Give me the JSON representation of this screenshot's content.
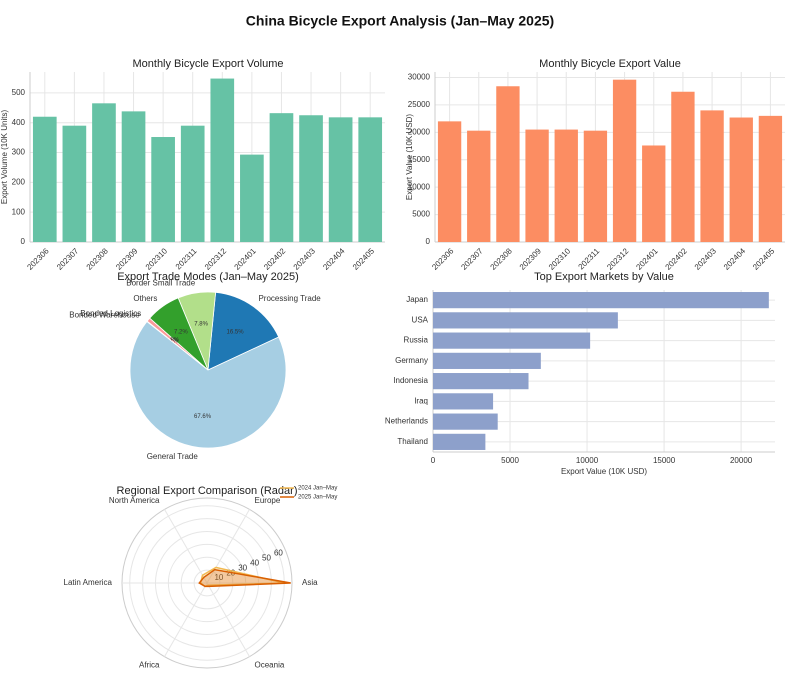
{
  "title": "China Bicycle Export Analysis (Jan–May 2025)",
  "chart_data": [
    {
      "type": "bar",
      "title": "Monthly Bicycle Export Volume",
      "ylabel": "Export Volume (10K Units)",
      "categories": [
        "202306",
        "202307",
        "202308",
        "202309",
        "202310",
        "202311",
        "202312",
        "202401",
        "202402",
        "202403",
        "202404",
        "202405"
      ],
      "values": [
        420,
        390,
        465,
        438,
        352,
        390,
        548,
        293,
        432,
        425,
        418,
        418
      ],
      "color": "#66c2a5",
      "ylim": [
        0,
        570
      ],
      "yticks": [
        0,
        100,
        200,
        300,
        400,
        500
      ],
      "grid": true
    },
    {
      "type": "bar",
      "title": "Monthly Bicycle Export Value",
      "ylabel": "Export Value (10K USD)",
      "categories": [
        "202306",
        "202307",
        "202308",
        "202309",
        "202310",
        "202311",
        "202312",
        "202401",
        "202402",
        "202403",
        "202404",
        "202405"
      ],
      "values": [
        22000,
        20300,
        28400,
        20500,
        20500,
        20300,
        29600,
        17600,
        27400,
        24000,
        22700,
        23000
      ],
      "color": "#fc8d62",
      "ylim": [
        0,
        31000
      ],
      "yticks": [
        0,
        5000,
        10000,
        15000,
        20000,
        25000,
        30000
      ],
      "grid": true
    },
    {
      "type": "pie",
      "title": "Export Trade Modes (Jan–May 2025)",
      "categories": [
        "Processing Trade",
        "Border Small Trade",
        "Others",
        "Bonded Logistics",
        "Bonded Warehouse",
        "General Trade"
      ],
      "values": [
        16.5,
        7.8,
        7.2,
        0.8,
        0.1,
        67.6
      ],
      "value_labels": [
        "16.5%",
        "7.8%",
        "7.2%",
        "0.8%",
        "0.1%",
        "67.6%"
      ],
      "colors": [
        "#1f78b4",
        "#b2df8a",
        "#33a02c",
        "#fb9a99",
        "#e31a1c",
        "#a6cee3"
      ]
    },
    {
      "type": "hbar",
      "title": "Top Export Markets by Value",
      "xlabel": "Export Value (10K USD)",
      "categories": [
        "Japan",
        "USA",
        "Russia",
        "Germany",
        "Indonesia",
        "Iraq",
        "Netherlands",
        "Thailand"
      ],
      "values": [
        21800,
        12000,
        10200,
        7000,
        6200,
        3900,
        4200,
        3400
      ],
      "color": "#8da0cb",
      "xlim": [
        0,
        22200
      ],
      "xticks": [
        0,
        5000,
        10000,
        15000,
        20000
      ],
      "grid": true
    },
    {
      "type": "radar",
      "title": "Regional Export Comparison (Radar)",
      "categories": [
        "Asia",
        "Europe",
        "North America",
        "Latin America",
        "Africa",
        "Oceania"
      ],
      "series": [
        {
          "name": "2024 Jan–May",
          "color": "#f2b950",
          "values": [
            60,
            14,
            7,
            5,
            3,
            2
          ]
        },
        {
          "name": "2025 Jan–May",
          "color": "#d95f02",
          "values": [
            65,
            12,
            5,
            6,
            3,
            3
          ]
        }
      ],
      "rlim": [
        0,
        66
      ],
      "rticks": [
        10,
        20,
        30,
        40,
        50,
        60
      ],
      "legend": "upper right"
    }
  ]
}
